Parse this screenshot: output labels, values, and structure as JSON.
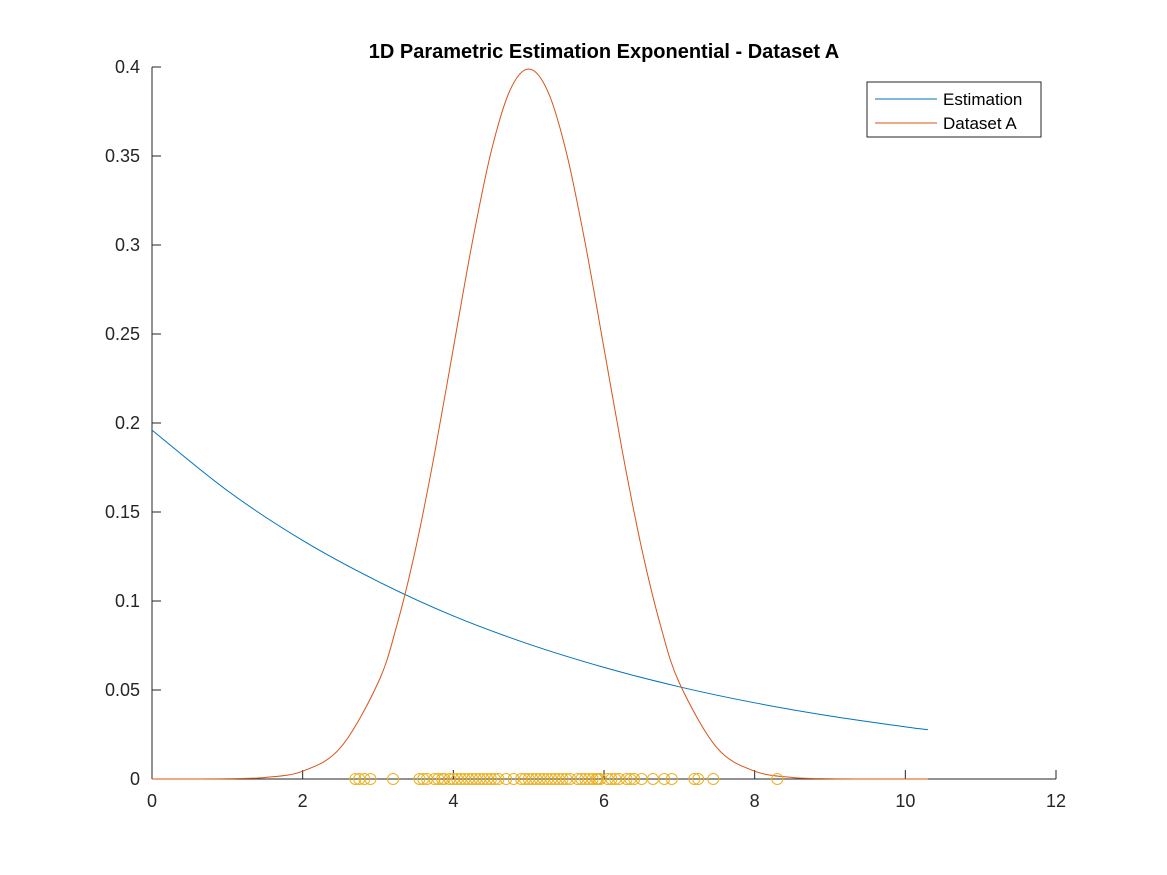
{
  "chart_data": {
    "type": "line",
    "title": "1D Parametric Estimation Exponential - Dataset A",
    "xlabel": "",
    "ylabel": "",
    "xlim": [
      0,
      12
    ],
    "ylim": [
      0,
      0.4
    ],
    "x_ticks": [
      "0",
      "2",
      "4",
      "6",
      "8",
      "10",
      "12"
    ],
    "y_ticks": [
      "0",
      "0.05",
      "0.1",
      "0.15",
      "0.2",
      "0.25",
      "0.3",
      "0.35",
      "0.4"
    ],
    "grid": false,
    "legend_position": "top-right",
    "series": [
      {
        "name": "Estimation",
        "color": "#0072BD",
        "x": [
          0,
          1,
          2,
          3,
          4,
          5,
          6,
          7,
          8,
          9,
          10,
          10.3
        ],
        "y": [
          0.196,
          0.162,
          0.134,
          0.111,
          0.0916,
          0.0758,
          0.0627,
          0.0518,
          0.0428,
          0.0354,
          0.0293,
          0.0277
        ]
      },
      {
        "name": "Dataset A",
        "color": "#D95319",
        "x": [
          0,
          0.5,
          1,
          1.5,
          2,
          2.5,
          3,
          3.25,
          3.5,
          3.75,
          4,
          4.25,
          4.5,
          4.75,
          5,
          5.25,
          5.5,
          5.75,
          6,
          6.25,
          6.5,
          6.75,
          7,
          7.5,
          8,
          8.5,
          9,
          9.5,
          10,
          10.3
        ],
        "y": [
          1.5e-06,
          1.6e-05,
          0.00013,
          0.00087,
          0.0044,
          0.0175,
          0.054,
          0.0863,
          0.1295,
          0.1826,
          0.242,
          0.3011,
          0.3521,
          0.3867,
          0.3989,
          0.3867,
          0.3521,
          0.3011,
          0.242,
          0.1826,
          0.1295,
          0.0863,
          0.054,
          0.0175,
          0.0044,
          0.00087,
          0.00013,
          1.6e-05,
          1.5e-06,
          5e-07
        ]
      }
    ],
    "samples": {
      "color": "#EDB120",
      "x": [
        2.7,
        2.75,
        2.82,
        2.9,
        3.2,
        3.55,
        3.6,
        3.65,
        3.75,
        3.8,
        3.85,
        3.88,
        3.95,
        4.0,
        4.05,
        4.1,
        4.15,
        4.2,
        4.25,
        4.3,
        4.35,
        4.4,
        4.45,
        4.5,
        4.55,
        4.6,
        4.7,
        4.8,
        4.9,
        4.95,
        5.0,
        5.05,
        5.1,
        5.15,
        5.2,
        5.25,
        5.3,
        5.35,
        5.4,
        5.45,
        5.5,
        5.55,
        5.65,
        5.7,
        5.75,
        5.8,
        5.85,
        5.9,
        5.92,
        5.95,
        6.05,
        6.1,
        6.15,
        6.2,
        6.3,
        6.35,
        6.4,
        6.5,
        6.65,
        6.8,
        6.9,
        7.2,
        7.25,
        7.45,
        8.3
      ],
      "y": 0
    }
  }
}
